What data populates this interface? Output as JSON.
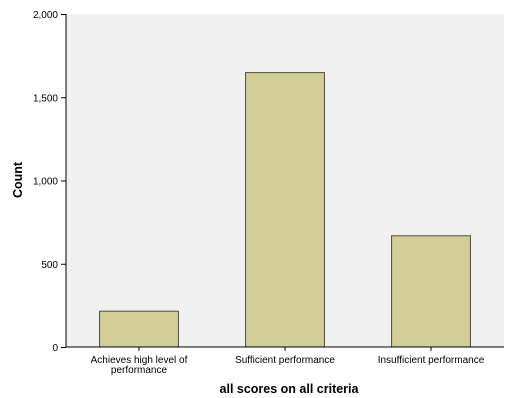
{
  "chart_data": {
    "type": "bar",
    "categories": [
      [
        "Achieves high level of",
        "performance"
      ],
      [
        "Sufficient performance"
      ],
      [
        "Insufficient performance"
      ]
    ],
    "values": [
      215,
      1648,
      668
    ],
    "ylim": [
      0,
      2000
    ],
    "yticks": [
      0,
      500,
      1000,
      1500,
      2000
    ],
    "ytick_labels": [
      "0",
      "500",
      "1,000",
      "1,500",
      "2,000"
    ],
    "xlabel": "all scores on all criteria",
    "ylabel": "Count",
    "grid": false,
    "colors": {
      "plot_bg": "#f0f0f0",
      "bar_fill": "#d3ce97",
      "bar_stroke": "#4a4a4a",
      "axis": "#000000"
    }
  }
}
